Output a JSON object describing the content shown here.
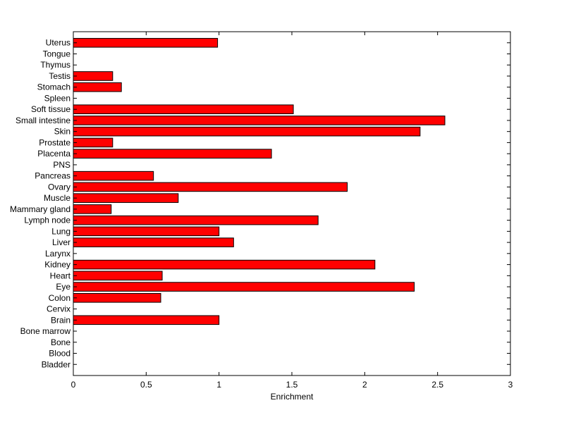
{
  "chart_data": {
    "type": "bar",
    "orientation": "horizontal",
    "categories": [
      "Bladder",
      "Blood",
      "Bone",
      "Bone marrow",
      "Brain",
      "Cervix",
      "Colon",
      "Eye",
      "Heart",
      "Kidney",
      "Larynx",
      "Liver",
      "Lung",
      "Lymph node",
      "Mammary gland",
      "Muscle",
      "Ovary",
      "Pancreas",
      "PNS",
      "Placenta",
      "Prostate",
      "Skin",
      "Small intestine",
      "Soft tissue",
      "Spleen",
      "Stomach",
      "Testis",
      "Thymus",
      "Tongue",
      "Uterus"
    ],
    "values": [
      0,
      0,
      0,
      0,
      1.0,
      0,
      0.6,
      2.34,
      0.61,
      2.07,
      0,
      1.1,
      1.0,
      1.68,
      0.26,
      0.72,
      1.88,
      0.55,
      0,
      1.36,
      0.27,
      2.38,
      2.55,
      1.51,
      0,
      0.33,
      0.27,
      0,
      0,
      0.99
    ],
    "xlabel": "Enrichment",
    "ylabel": "",
    "title": "",
    "xlim": [
      0,
      3
    ],
    "xticks": [
      "0",
      "0.5",
      "1",
      "1.5",
      "2",
      "2.5",
      "3"
    ],
    "grid": false,
    "bar_color": "#ff0000",
    "bar_edge_color": "#000000"
  }
}
